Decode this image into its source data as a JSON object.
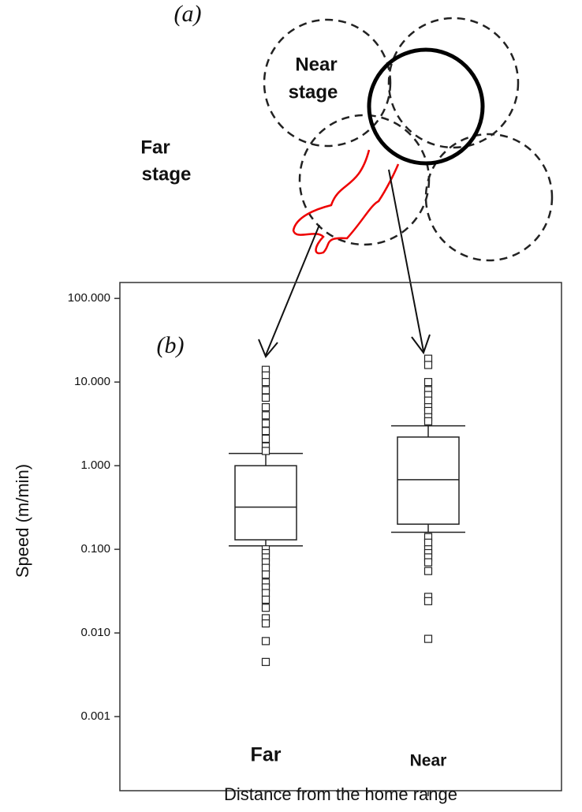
{
  "diagram": {
    "label": "(a)",
    "near_label": [
      "Near",
      "stage"
    ],
    "far_label": [
      "Far",
      "stage"
    ]
  },
  "chart_data": {
    "type": "box",
    "annotation": "(b)",
    "ylabel": "Speed (m/min)",
    "xlabel": "Distance from the home range",
    "log_scale": true,
    "ylim": [
      0.00013,
      155
    ],
    "yticks": [
      {
        "value": 100,
        "label": "100.000"
      },
      {
        "value": 10,
        "label": "10.000"
      },
      {
        "value": 1,
        "label": "1.000"
      },
      {
        "value": 0.1,
        "label": "0.100"
      },
      {
        "value": 0.01,
        "label": "0.010"
      },
      {
        "value": 0.001,
        "label": "0.001"
      }
    ],
    "categories": [
      "Far",
      "Near"
    ],
    "boxes": [
      {
        "whisker_low": 0.11,
        "q1": 0.13,
        "median": 0.32,
        "q3": 1.0,
        "whisker_high": 1.4,
        "outliers": [
          14,
          12,
          10,
          8,
          6.5,
          5,
          4,
          3.2,
          2.6,
          2.1,
          1.7,
          1.5,
          0.1,
          0.09,
          0.08,
          0.07,
          0.06,
          0.05,
          0.04,
          0.035,
          0.03,
          0.025,
          0.02,
          0.015,
          0.013,
          0.008,
          0.0045
        ]
      },
      {
        "whisker_low": 0.16,
        "q1": 0.2,
        "median": 0.68,
        "q3": 2.2,
        "whisker_high": 3.0,
        "outliers": [
          19,
          16,
          10,
          8,
          7,
          6,
          5,
          4.5,
          3.8,
          3.4,
          0.14,
          0.12,
          0.1,
          0.09,
          0.08,
          0.07,
          0.055,
          0.027,
          0.024,
          0.0085
        ]
      }
    ]
  }
}
